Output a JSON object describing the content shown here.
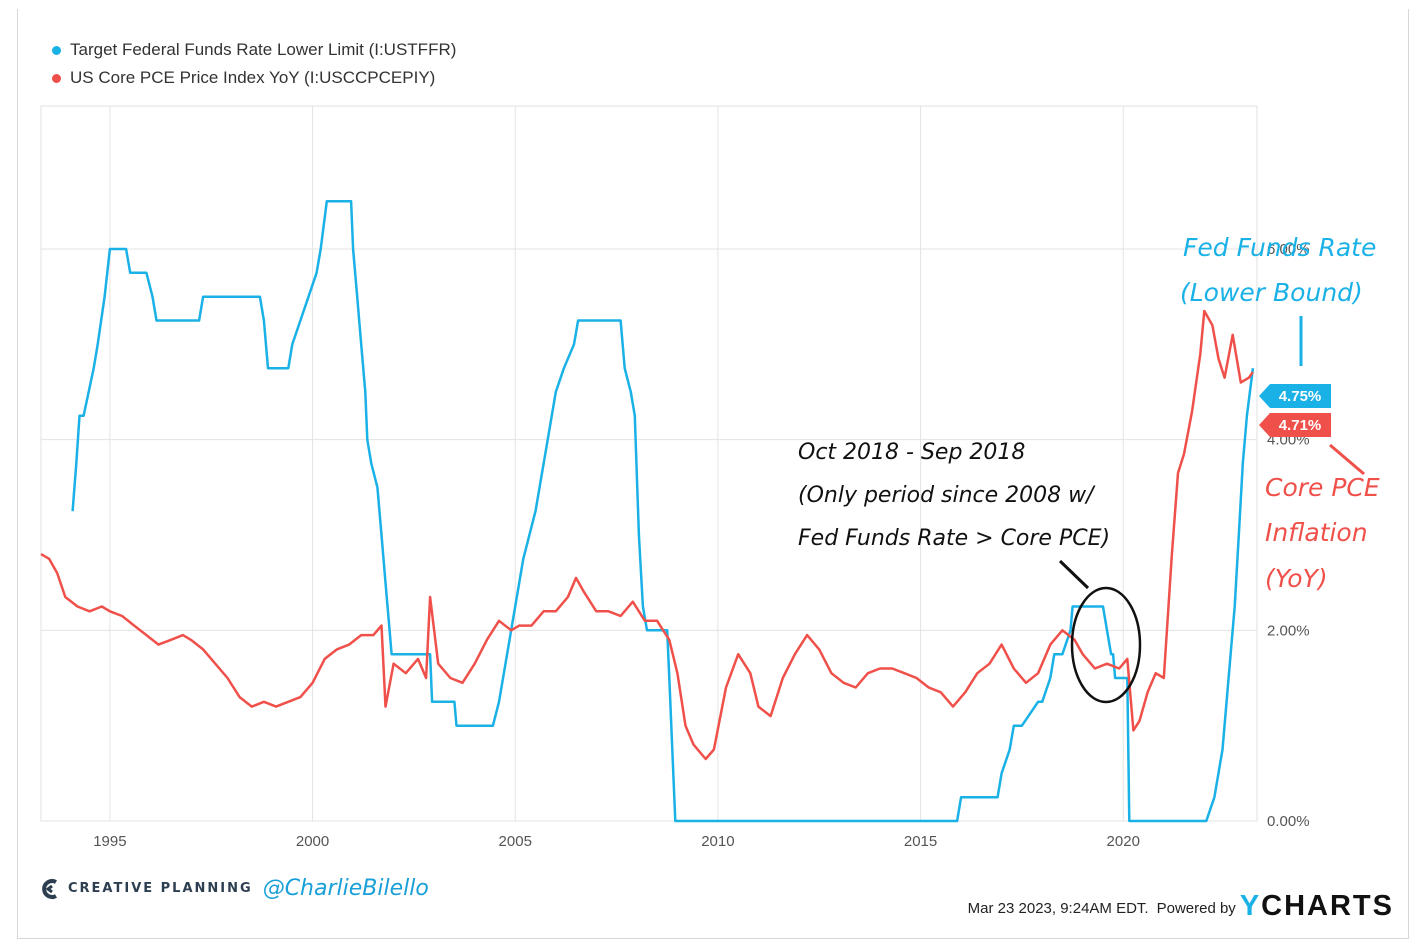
{
  "legend": [
    {
      "label": "Target Federal Funds Rate Lower Limit (I:USTFFR)",
      "color": "#1ab1e7"
    },
    {
      "label": "US Core PCE Price Index YoY (I:USCCPCEPIY)",
      "color": "#f0504a"
    }
  ],
  "annotations": {
    "fed_label_1": "Fed Funds Rate",
    "fed_label_2": "(Lower Bound)",
    "pce_label_1": "Core PCE",
    "pce_label_2": "Inflation",
    "pce_label_3": "(YoY)",
    "note_1": "Oct 2018 - Sep 2018",
    "note_2": "(Only period since 2008 w/",
    "note_3": "Fed Funds Rate > Core PCE)"
  },
  "footer": {
    "brand": "CREATIVE PLANNING",
    "handle": "@CharlieBilello",
    "timestamp": "Mar 23 2023, 9:24AM EDT.",
    "powered_by": "Powered by",
    "logo_y": "Y",
    "logo_rest": "CHARTS"
  },
  "chart_data": {
    "type": "line",
    "xlim": [
      1993.3,
      2023.3
    ],
    "ylim": [
      0,
      7.5
    ],
    "x_ticks": [
      1995,
      2000,
      2005,
      2010,
      2015,
      2020
    ],
    "x_tick_labels": [
      "1995",
      "2000",
      "2005",
      "2010",
      "2015",
      "2020"
    ],
    "y_ticks": [
      0,
      2,
      4,
      6
    ],
    "y_tick_labels": [
      "0.00%",
      "2.00%",
      "4.00%",
      "6.00%"
    ],
    "end_labels": [
      {
        "series": "Target Federal Funds Rate Lower Limit (I:USTFFR)",
        "text": "4.75%",
        "value": 4.75,
        "color": "#1ab1e7"
      },
      {
        "series": "US Core PCE Price Index YoY (I:USCCPCEPIY)",
        "text": "4.71%",
        "value": 4.71,
        "color": "#f0504a"
      }
    ],
    "series": [
      {
        "name": "Target Federal Funds Rate Lower Limit (I:USTFFR)",
        "color": "#1ab1e7",
        "x": [
          1994.08,
          1994.17,
          1994.25,
          1994.35,
          1994.6,
          1994.7,
          1994.87,
          1995.0,
          1995.1,
          1995.4,
          1995.5,
          1995.6,
          1995.9,
          1996.05,
          1996.15,
          1997.2,
          1997.3,
          1998.2,
          1998.7,
          1998.8,
          1998.9,
          1999.4,
          1999.5,
          1999.7,
          1999.9,
          2000.1,
          2000.2,
          2000.35,
          2000.45,
          2000.95,
          2001.0,
          2001.1,
          2001.2,
          2001.3,
          2001.35,
          2001.45,
          2001.6,
          2001.7,
          2001.8,
          2001.9,
          2001.95,
          2002.9,
          2002.95,
          2003.5,
          2003.55,
          2004.45,
          2004.6,
          2004.8,
          2005.0,
          2005.2,
          2005.5,
          2005.8,
          2006.0,
          2006.2,
          2006.45,
          2006.55,
          2007.6,
          2007.7,
          2007.85,
          2007.95,
          2008.05,
          2008.15,
          2008.25,
          2008.3,
          2008.75,
          2008.8,
          2008.95,
          2015.9,
          2016.0,
          2016.9,
          2017.0,
          2017.2,
          2017.3,
          2017.5,
          2017.9,
          2018.0,
          2018.2,
          2018.3,
          2018.5,
          2018.7,
          2018.75,
          2018.95,
          2019.0,
          2019.5,
          2019.6,
          2019.7,
          2019.75,
          2019.8,
          2019.85,
          2020.1,
          2020.15,
          2020.2,
          2021.95,
          2022.05,
          2022.25,
          2022.45,
          2022.6,
          2022.75,
          2022.85,
          2022.95,
          2023.05,
          2023.2
        ],
        "y": [
          3.25,
          3.75,
          4.25,
          4.25,
          4.75,
          5.0,
          5.5,
          6.0,
          6.0,
          6.0,
          5.75,
          5.75,
          5.75,
          5.5,
          5.25,
          5.25,
          5.5,
          5.5,
          5.5,
          5.25,
          4.75,
          4.75,
          5.0,
          5.25,
          5.5,
          5.75,
          6.0,
          6.5,
          6.5,
          6.5,
          6.0,
          5.5,
          5.0,
          4.5,
          4.0,
          3.75,
          3.5,
          3.0,
          2.5,
          2.0,
          1.75,
          1.75,
          1.25,
          1.25,
          1.0,
          1.0,
          1.25,
          1.75,
          2.25,
          2.75,
          3.25,
          4.0,
          4.5,
          4.75,
          5.0,
          5.25,
          5.25,
          4.75,
          4.5,
          4.25,
          3.0,
          2.25,
          2.0,
          2.0,
          2.0,
          1.5,
          0.0,
          0.0,
          0.25,
          0.25,
          0.5,
          0.75,
          1.0,
          1.0,
          1.25,
          1.25,
          1.5,
          1.75,
          1.75,
          2.0,
          2.25,
          2.25,
          2.25,
          2.25,
          2.0,
          1.75,
          1.75,
          1.5,
          1.5,
          1.5,
          0.0,
          0.0,
          0.0,
          0.0,
          0.25,
          0.75,
          1.5,
          2.25,
          3.0,
          3.75,
          4.25,
          4.75
        ]
      },
      {
        "name": "US Core PCE Price Index YoY (I:USCCPCEPIY)",
        "color": "#f0504a",
        "x": [
          1993.3,
          1993.5,
          1993.7,
          1993.9,
          1994.2,
          1994.5,
          1994.8,
          1995.0,
          1995.3,
          1995.6,
          1995.9,
          1996.2,
          1996.5,
          1996.8,
          1997.0,
          1997.3,
          1997.6,
          1997.9,
          1998.2,
          1998.5,
          1998.8,
          1999.1,
          1999.4,
          1999.7,
          2000.0,
          2000.3,
          2000.6,
          2000.9,
          2001.2,
          2001.5,
          2001.7,
          2001.8,
          2002.0,
          2002.3,
          2002.6,
          2002.8,
          2002.9,
          2003.1,
          2003.4,
          2003.7,
          2004.0,
          2004.3,
          2004.6,
          2004.9,
          2005.1,
          2005.4,
          2005.7,
          2006.0,
          2006.3,
          2006.5,
          2006.7,
          2007.0,
          2007.3,
          2007.6,
          2007.9,
          2008.2,
          2008.5,
          2008.8,
          2009.0,
          2009.2,
          2009.4,
          2009.7,
          2009.9,
          2010.2,
          2010.5,
          2010.8,
          2011.0,
          2011.3,
          2011.6,
          2011.9,
          2012.2,
          2012.5,
          2012.8,
          2013.1,
          2013.4,
          2013.7,
          2014.0,
          2014.3,
          2014.6,
          2014.9,
          2015.2,
          2015.5,
          2015.8,
          2016.1,
          2016.4,
          2016.7,
          2017.0,
          2017.3,
          2017.6,
          2017.9,
          2018.2,
          2018.5,
          2018.8,
          2019.0,
          2019.3,
          2019.6,
          2019.9,
          2020.1,
          2020.25,
          2020.4,
          2020.6,
          2020.8,
          2021.0,
          2021.2,
          2021.35,
          2021.5,
          2021.7,
          2021.9,
          2022.0,
          2022.2,
          2022.35,
          2022.5,
          2022.7,
          2022.9,
          2023.1,
          2023.2
        ],
        "y": [
          2.8,
          2.75,
          2.6,
          2.35,
          2.25,
          2.2,
          2.25,
          2.2,
          2.15,
          2.05,
          1.95,
          1.85,
          1.9,
          1.95,
          1.9,
          1.8,
          1.65,
          1.5,
          1.3,
          1.2,
          1.25,
          1.2,
          1.25,
          1.3,
          1.45,
          1.7,
          1.8,
          1.85,
          1.95,
          1.95,
          2.05,
          1.2,
          1.65,
          1.55,
          1.7,
          1.5,
          2.35,
          1.65,
          1.5,
          1.45,
          1.65,
          1.9,
          2.1,
          2.0,
          2.05,
          2.05,
          2.2,
          2.2,
          2.35,
          2.55,
          2.4,
          2.2,
          2.2,
          2.15,
          2.3,
          2.1,
          2.1,
          1.9,
          1.55,
          1.0,
          0.8,
          0.65,
          0.75,
          1.4,
          1.75,
          1.55,
          1.2,
          1.1,
          1.5,
          1.75,
          1.95,
          1.8,
          1.55,
          1.45,
          1.4,
          1.55,
          1.6,
          1.6,
          1.55,
          1.5,
          1.4,
          1.35,
          1.2,
          1.35,
          1.55,
          1.65,
          1.85,
          1.6,
          1.45,
          1.55,
          1.85,
          2.0,
          1.9,
          1.75,
          1.6,
          1.65,
          1.6,
          1.7,
          0.95,
          1.05,
          1.35,
          1.55,
          1.5,
          2.8,
          3.65,
          3.85,
          4.3,
          4.9,
          5.35,
          5.2,
          4.85,
          4.65,
          5.1,
          4.6,
          4.65,
          4.71
        ]
      }
    ]
  }
}
